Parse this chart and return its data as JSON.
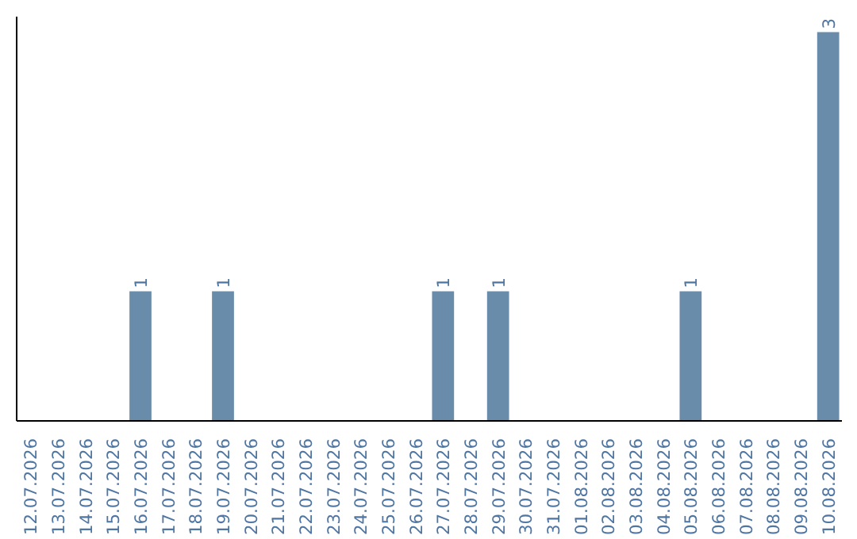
{
  "chart_data": {
    "type": "bar",
    "categories": [
      "12.07.2026",
      "13.07.2026",
      "14.07.2026",
      "15.07.2026",
      "16.07.2026",
      "17.07.2026",
      "18.07.2026",
      "19.07.2026",
      "20.07.2026",
      "21.07.2026",
      "22.07.2026",
      "23.07.2026",
      "24.07.2026",
      "25.07.2026",
      "26.07.2026",
      "27.07.2026",
      "28.07.2026",
      "29.07.2026",
      "30.07.2026",
      "31.07.2026",
      "01.08.2026",
      "02.08.2026",
      "03.08.2026",
      "04.08.2026",
      "05.08.2026",
      "06.08.2026",
      "07.08.2026",
      "08.08.2026",
      "09.08.2026",
      "10.08.2026"
    ],
    "values": [
      0,
      0,
      0,
      0,
      1,
      0,
      0,
      1,
      0,
      0,
      0,
      0,
      0,
      0,
      0,
      1,
      0,
      1,
      0,
      0,
      0,
      0,
      0,
      0,
      1,
      0,
      0,
      0,
      0,
      3
    ],
    "value_labels": [
      null,
      null,
      null,
      null,
      "1",
      null,
      null,
      "1",
      null,
      null,
      null,
      null,
      null,
      null,
      null,
      "1",
      null,
      "1",
      null,
      null,
      null,
      null,
      null,
      null,
      "1",
      null,
      null,
      null,
      null,
      "3"
    ],
    "color": "#6a8cab",
    "grid": false
  }
}
